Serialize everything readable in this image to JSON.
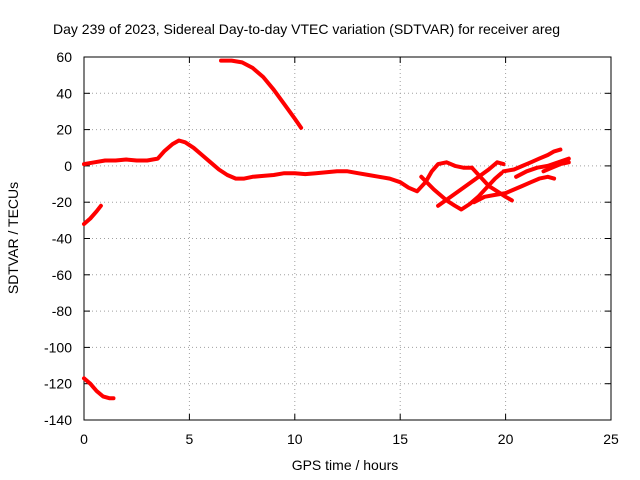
{
  "chart_data": {
    "type": "scatter",
    "title": "Day 239 of 2023, Sidereal Day-to-day VTEC variation (SDTVAR) for receiver areg",
    "xlabel": "GPS time / hours",
    "ylabel": "SDTVAR / TECUs",
    "xlim": [
      0,
      25
    ],
    "ylim": [
      -140,
      60
    ],
    "xticks": [
      0,
      5,
      10,
      15,
      20,
      25
    ],
    "yticks": [
      -140,
      -120,
      -100,
      -80,
      -60,
      -40,
      -20,
      0,
      20,
      40,
      60
    ],
    "grid": true,
    "color": "#ff0000",
    "series": [
      {
        "name": "main-track",
        "points": [
          [
            0.0,
            1
          ],
          [
            0.5,
            2
          ],
          [
            1.0,
            3
          ],
          [
            1.5,
            3
          ],
          [
            2.0,
            3.5
          ],
          [
            2.5,
            3
          ],
          [
            3.0,
            3
          ],
          [
            3.5,
            4
          ],
          [
            3.8,
            8
          ],
          [
            4.2,
            12
          ],
          [
            4.5,
            14
          ],
          [
            4.8,
            13
          ],
          [
            5.2,
            10
          ],
          [
            5.6,
            6
          ],
          [
            6.0,
            2
          ],
          [
            6.4,
            -2
          ],
          [
            6.8,
            -5
          ],
          [
            7.2,
            -7
          ],
          [
            7.6,
            -7
          ],
          [
            8.0,
            -6
          ],
          [
            8.5,
            -5.5
          ],
          [
            9.0,
            -5
          ],
          [
            9.5,
            -4
          ],
          [
            10.0,
            -4
          ],
          [
            10.5,
            -4.5
          ],
          [
            11.0,
            -4
          ],
          [
            11.5,
            -3.5
          ],
          [
            12.0,
            -3
          ],
          [
            12.5,
            -3
          ],
          [
            13.0,
            -4
          ],
          [
            13.5,
            -5
          ],
          [
            14.0,
            -6
          ],
          [
            14.5,
            -7
          ],
          [
            15.0,
            -9
          ],
          [
            15.4,
            -12
          ],
          [
            15.8,
            -14
          ],
          [
            16.2,
            -9
          ],
          [
            16.5,
            -3
          ],
          [
            16.8,
            1
          ],
          [
            17.2,
            2
          ],
          [
            17.6,
            0
          ],
          [
            18.0,
            -1
          ],
          [
            18.4,
            -1
          ]
        ]
      },
      {
        "name": "tail-east",
        "points": [
          [
            18.4,
            -1
          ],
          [
            18.8,
            -6
          ],
          [
            19.2,
            -11
          ],
          [
            19.6,
            -14
          ],
          [
            20.0,
            -17
          ],
          [
            20.3,
            -19
          ]
        ]
      },
      {
        "name": "dip-arc",
        "points": [
          [
            16.0,
            -6
          ],
          [
            16.6,
            -13
          ],
          [
            17.2,
            -19
          ],
          [
            17.6,
            -22
          ],
          [
            17.9,
            -24
          ],
          [
            18.3,
            -21
          ],
          [
            18.7,
            -17
          ],
          [
            19.1,
            -12
          ],
          [
            19.5,
            -7
          ],
          [
            19.8,
            -4
          ]
        ]
      },
      {
        "name": "dip-arc-2",
        "points": [
          [
            16.8,
            -22
          ],
          [
            17.4,
            -17
          ],
          [
            18.0,
            -12
          ],
          [
            18.6,
            -7
          ],
          [
            19.2,
            -2
          ],
          [
            19.6,
            2
          ],
          [
            19.9,
            1
          ]
        ]
      },
      {
        "name": "cross-track",
        "points": [
          [
            18.5,
            -20
          ],
          [
            19.0,
            -17
          ],
          [
            19.5,
            -16
          ],
          [
            20.0,
            -15
          ],
          [
            20.4,
            -13
          ],
          [
            20.8,
            -11
          ],
          [
            21.2,
            -9
          ],
          [
            21.6,
            -7
          ],
          [
            22.0,
            -6
          ],
          [
            22.3,
            -7
          ]
        ]
      },
      {
        "name": "end-track-1",
        "points": [
          [
            19.9,
            -3
          ],
          [
            20.4,
            -2
          ],
          [
            20.8,
            0
          ],
          [
            21.2,
            2
          ],
          [
            21.6,
            4
          ],
          [
            22.0,
            6
          ],
          [
            22.3,
            8
          ],
          [
            22.6,
            9
          ]
        ]
      },
      {
        "name": "end-track-2",
        "points": [
          [
            20.5,
            -6
          ],
          [
            21.0,
            -3
          ],
          [
            21.5,
            -1
          ],
          [
            22.0,
            0
          ],
          [
            22.5,
            2
          ],
          [
            23.0,
            4
          ]
        ]
      },
      {
        "name": "end-track-3",
        "points": [
          [
            21.8,
            -3
          ],
          [
            22.2,
            -1
          ],
          [
            22.6,
            1
          ],
          [
            23.0,
            2
          ]
        ]
      },
      {
        "name": "high-arc",
        "points": [
          [
            6.5,
            58
          ],
          [
            7.0,
            58
          ],
          [
            7.5,
            57
          ],
          [
            8.0,
            54
          ],
          [
            8.5,
            49
          ],
          [
            9.0,
            42
          ],
          [
            9.5,
            34
          ],
          [
            10.0,
            26
          ],
          [
            10.3,
            21
          ]
        ]
      },
      {
        "name": "left-segment",
        "points": [
          [
            0.0,
            -32
          ],
          [
            0.3,
            -29
          ],
          [
            0.6,
            -25
          ],
          [
            0.8,
            -22
          ]
        ]
      },
      {
        "name": "bottom-left-segment",
        "points": [
          [
            0.0,
            -117
          ],
          [
            0.3,
            -120
          ],
          [
            0.6,
            -124
          ],
          [
            0.9,
            -127
          ],
          [
            1.2,
            -128
          ],
          [
            1.4,
            -128
          ]
        ]
      }
    ]
  }
}
